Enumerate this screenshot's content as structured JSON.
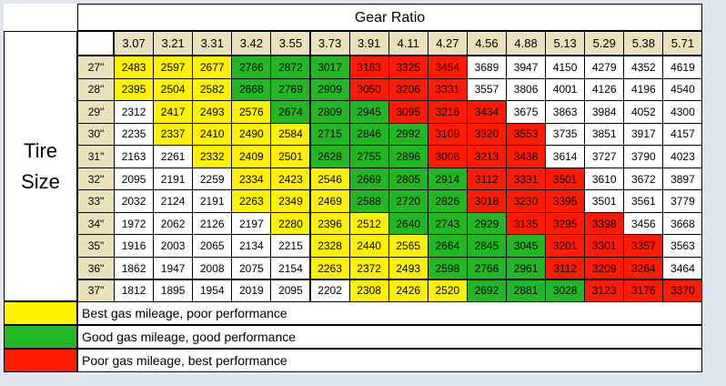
{
  "table": {
    "gear_ratio_label": "Gear Ratio",
    "tire_size_label": [
      "Tire",
      "Size"
    ],
    "gear_ratios": [
      "3.07",
      "3.21",
      "3.31",
      "3.42",
      "3.55",
      "3.73",
      "3.91",
      "4.11",
      "4.27",
      "4.56",
      "4.88",
      "5.13",
      "5.29",
      "5.38",
      "5.71"
    ],
    "rows": [
      {
        "tire": "27\"",
        "values": [
          "2483",
          "2597",
          "2677",
          "2766",
          "2872",
          "3017",
          "3163",
          "3325",
          "3454",
          "3689",
          "3947",
          "4150",
          "4279",
          "4352",
          "4619"
        ],
        "colors": [
          "y",
          "y",
          "y",
          "g",
          "g",
          "g",
          "r",
          "r",
          "r",
          "w",
          "w",
          "w",
          "w",
          "w",
          "w"
        ]
      },
      {
        "tire": "28\"",
        "values": [
          "2395",
          "2504",
          "2582",
          "2668",
          "2769",
          "2909",
          "3050",
          "3206",
          "3331",
          "3557",
          "3806",
          "4001",
          "4126",
          "4196",
          "4540"
        ],
        "colors": [
          "y",
          "y",
          "y",
          "g",
          "g",
          "g",
          "r",
          "r",
          "r",
          "w",
          "w",
          "w",
          "w",
          "w",
          "w"
        ]
      },
      {
        "tire": "29\"",
        "values": [
          "2312",
          "2417",
          "2493",
          "2576",
          "2674",
          "2809",
          "2945",
          "3095",
          "3216",
          "3434",
          "3675",
          "3863",
          "3984",
          "4052",
          "4300"
        ],
        "colors": [
          "w",
          "y",
          "y",
          "y",
          "g",
          "g",
          "g",
          "r",
          "r",
          "r",
          "w",
          "w",
          "w",
          "w",
          "w"
        ]
      },
      {
        "tire": "30\"",
        "values": [
          "2235",
          "2337",
          "2410",
          "2490",
          "2584",
          "2715",
          "2846",
          "2992",
          "3109",
          "3320",
          "3553",
          "3735",
          "3851",
          "3917",
          "4157"
        ],
        "colors": [
          "w",
          "y",
          "y",
          "y",
          "y",
          "g",
          "g",
          "g",
          "r",
          "r",
          "r",
          "w",
          "w",
          "w",
          "w"
        ]
      },
      {
        "tire": "31\"",
        "values": [
          "2163",
          "2261",
          "2332",
          "2409",
          "2501",
          "2628",
          "2755",
          "2896",
          "3008",
          "3213",
          "3438",
          "3614",
          "3727",
          "3790",
          "4023"
        ],
        "colors": [
          "w",
          "w",
          "y",
          "y",
          "y",
          "g",
          "g",
          "g",
          "r",
          "r",
          "r",
          "w",
          "w",
          "w",
          "w"
        ]
      },
      {
        "tire": "32\"",
        "values": [
          "2095",
          "2191",
          "2259",
          "2334",
          "2423",
          "2546",
          "2669",
          "2805",
          "2914",
          "3112",
          "3331",
          "3501",
          "3610",
          "3672",
          "3897"
        ],
        "colors": [
          "w",
          "w",
          "w",
          "y",
          "y",
          "y",
          "g",
          "g",
          "g",
          "r",
          "r",
          "r",
          "w",
          "w",
          "w"
        ]
      },
      {
        "tire": "33\"",
        "values": [
          "2032",
          "2124",
          "2191",
          "2263",
          "2349",
          "2469",
          "2588",
          "2720",
          "2826",
          "3018",
          "3230",
          "3395",
          "3501",
          "3561",
          "3779"
        ],
        "colors": [
          "w",
          "w",
          "w",
          "y",
          "y",
          "y",
          "g",
          "g",
          "g",
          "r",
          "r",
          "r",
          "w",
          "w",
          "w"
        ]
      },
      {
        "tire": "34\"",
        "values": [
          "1972",
          "2062",
          "2126",
          "2197",
          "2280",
          "2396",
          "2512",
          "2640",
          "2743",
          "2929",
          "3135",
          "3295",
          "3398",
          "3456",
          "3668"
        ],
        "colors": [
          "w",
          "w",
          "w",
          "w",
          "y",
          "y",
          "y",
          "g",
          "g",
          "g",
          "r",
          "r",
          "r",
          "w",
          "w"
        ]
      },
      {
        "tire": "35\"",
        "values": [
          "1916",
          "2003",
          "2065",
          "2134",
          "2215",
          "2328",
          "2440",
          "2565",
          "2664",
          "2845",
          "3045",
          "3201",
          "3301",
          "3357",
          "3563"
        ],
        "colors": [
          "w",
          "w",
          "w",
          "w",
          "w",
          "y",
          "y",
          "y",
          "g",
          "g",
          "g",
          "r",
          "r",
          "r",
          "w"
        ]
      },
      {
        "tire": "36\"",
        "values": [
          "1862",
          "1947",
          "2008",
          "2075",
          "2154",
          "2263",
          "2372",
          "2493",
          "2598",
          "2766",
          "2961",
          "3112",
          "3209",
          "3264",
          "3464"
        ],
        "colors": [
          "w",
          "w",
          "w",
          "w",
          "w",
          "y",
          "y",
          "y",
          "g",
          "g",
          "g",
          "r",
          "r",
          "r",
          "w"
        ]
      },
      {
        "tire": "37\"",
        "values": [
          "1812",
          "1895",
          "1954",
          "2019",
          "2095",
          "2202",
          "2308",
          "2426",
          "2520",
          "2692",
          "2881",
          "3028",
          "3123",
          "3176",
          "3370"
        ],
        "colors": [
          "w",
          "w",
          "w",
          "w",
          "w",
          "w",
          "y",
          "y",
          "y",
          "g",
          "g",
          "g",
          "r",
          "r",
          "r"
        ]
      }
    ]
  },
  "legend": {
    "items": [
      {
        "color_key": "y",
        "color": "#fff200",
        "text": "Best gas mileage, poor performance"
      },
      {
        "color_key": "g",
        "color": "#22b823",
        "text": "Good gas mileage, good performance"
      },
      {
        "color_key": "r",
        "color": "#ff1a00",
        "text": "Poor gas mileage, best performance"
      }
    ]
  },
  "colors": {
    "y": "#fff200",
    "g": "#22b823",
    "r": "#ff1a00",
    "w": "#ffffff",
    "header": "#ebe1bd"
  }
}
